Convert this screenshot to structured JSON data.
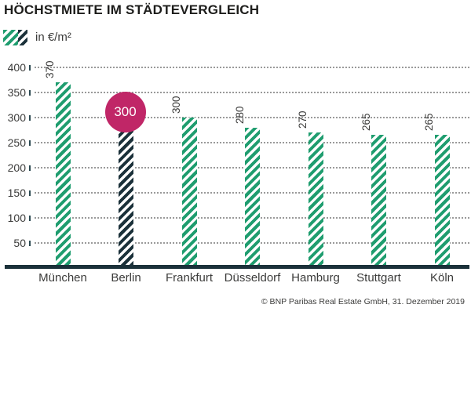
{
  "header": {
    "title": "HÖCHSTMIETE IM STÄDTEVERGLEICH"
  },
  "legend": {
    "label": "in €/m²"
  },
  "chart_data": {
    "type": "bar",
    "title": "HÖCHSTMIETE IM STÄDTEVERGLEICH",
    "unit_label": "in €/m²",
    "categories": [
      "München",
      "Berlin",
      "Frankfurt",
      "Düsseldorf",
      "Hamburg",
      "Stuttgart",
      "Köln"
    ],
    "values": [
      370,
      300,
      300,
      280,
      270,
      265,
      265
    ],
    "value_labels": [
      "370",
      "",
      "300",
      "280",
      "270",
      "265",
      "265"
    ],
    "highlight_index": 1,
    "highlight_badge": "300",
    "ylim": [
      0,
      400
    ],
    "yticks": [
      400,
      350,
      300,
      250,
      200,
      150,
      100,
      50
    ],
    "grid": "horizontal-dotted",
    "legend_position": "top-left",
    "colors": {
      "bar_stripe": "#1f9d6f",
      "highlight_stripe": "#1b313a",
      "badge": "#c02667",
      "axis": "#1b313a",
      "grid_dots": "#9a9a9a",
      "text": "#3c3c3b"
    }
  },
  "footer": {
    "source": "© BNP Paribas Real Estate GmbH, 31. Dezember 2019"
  }
}
